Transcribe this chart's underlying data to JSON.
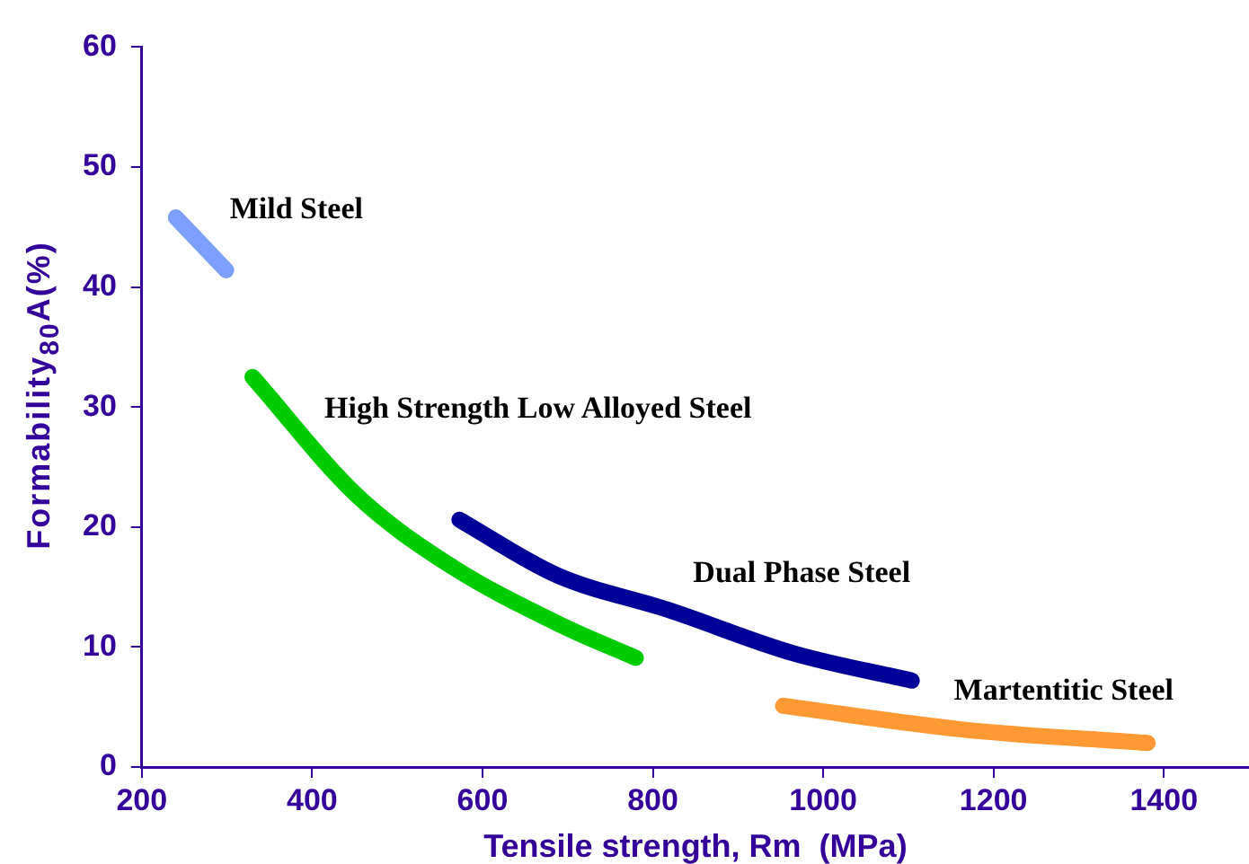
{
  "chart_data": {
    "type": "line",
    "xlabel": "Tensile strength, Rm  (MPa)",
    "ylabel": "Formability$_{80}$A(%)",
    "xlim": [
      200,
      1500
    ],
    "xticks": [
      200,
      400,
      600,
      800,
      1000,
      1200,
      1400
    ],
    "ylim": [
      0,
      60
    ],
    "yticks": [
      0,
      10,
      20,
      30,
      40,
      50,
      60
    ],
    "marker": "none",
    "line_style": "solid",
    "series": [
      {
        "name": "Mild Steel",
        "color": "#7f9fff",
        "x": [
          240,
          299
        ],
        "values": [
          45.8,
          41.4
        ]
      },
      {
        "name": "High Strength Low Alloyed Steel",
        "color": "#00cc00",
        "x": [
          330,
          453,
          562,
          693,
          780
        ],
        "values": [
          32.5,
          22.6,
          16.8,
          11.8,
          9.1
        ]
      },
      {
        "name": "Dual Phase Steel",
        "color": "#000099",
        "x": [
          573,
          687,
          818,
          964,
          1104
        ],
        "values": [
          20.6,
          16,
          13.1,
          9.5,
          7.2
        ]
      },
      {
        "name": "Martentitic Steel",
        "color": "#ff9933",
        "x": [
          953,
          1167,
          1381
        ],
        "values": [
          5.1,
          3.1,
          2.0
        ]
      }
    ]
  }
}
